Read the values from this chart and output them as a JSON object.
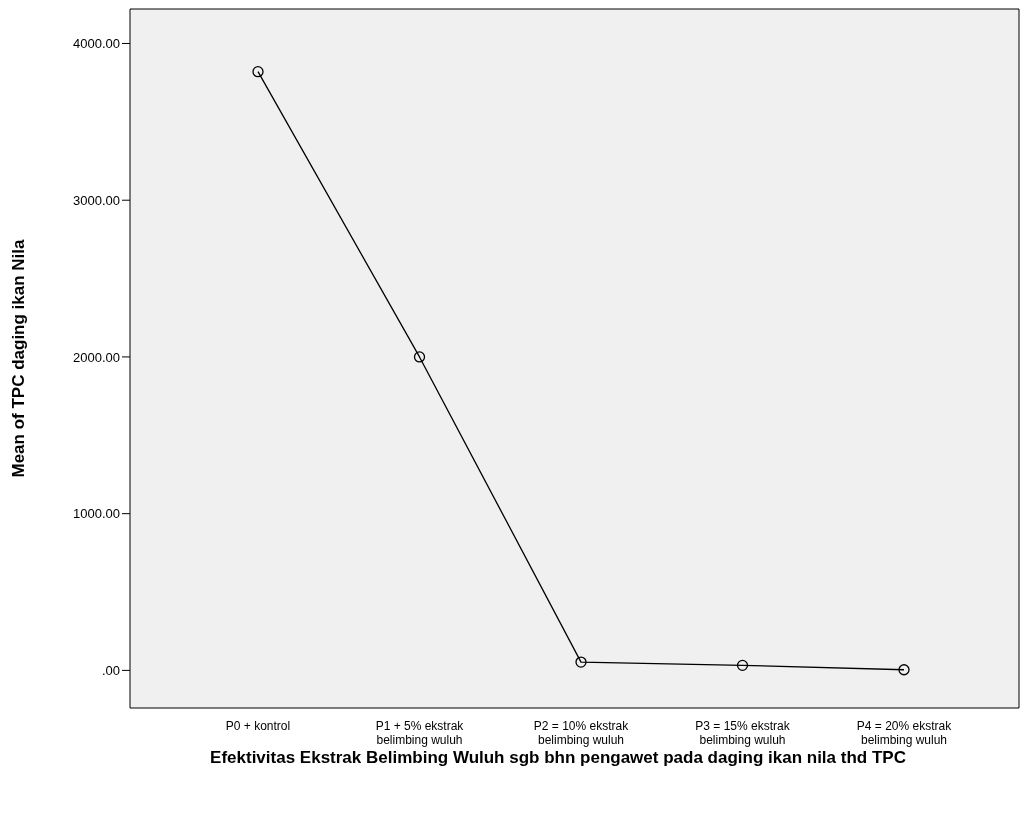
{
  "chart_data": {
    "type": "line",
    "xlabel": "Efektivitas Ekstrak Belimbing Wuluh sgb bhn pengawet pada daging ikan nila thd TPC",
    "ylabel": "Mean of TPC daging ikan Nila",
    "categories": [
      "P0 + kontrol",
      "P1 + 5% ekstrak\nbelimbing wuluh",
      "P2 = 10% ekstrak\nbelimbing wuluh",
      "P3 = 15% ekstrak\nbelimbing wuluh",
      "P4 = 20% ekstrak\nbelimbing wuluh"
    ],
    "values": [
      3820,
      2000,
      53,
      32,
      4
    ],
    "color": "#000000",
    "marker": "circle",
    "line_style": "solid",
    "ylim": [
      -240,
      4220
    ],
    "yticks": [
      {
        "value": 0,
        "label": ".00"
      },
      {
        "value": 1000,
        "label": "1000.00"
      },
      {
        "value": 2000,
        "label": "2000.00"
      },
      {
        "value": 3000,
        "label": "3000.00"
      },
      {
        "value": 4000,
        "label": "4000.00"
      }
    ],
    "grid": false,
    "legend": false
  }
}
